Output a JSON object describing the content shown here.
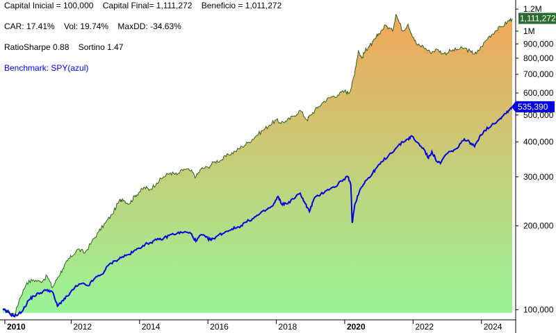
{
  "stats": {
    "line1": "Capital Inicial = 100,000    Capital Final= 1,111,272    Beneficio = 1,011,272",
    "line2": "CAR: 17.41%    Vol: 19.74%    MaxDD: -34.63%",
    "line3": "RatioSharpe 0.88    Sortino 1.47",
    "benchmark": "Benchmark: SPY(azul)"
  },
  "colors": {
    "equity_line": "#2e5e1e",
    "fill_top": "#f2a65a",
    "fill_bottom": "#98f598",
    "benchmark_line": "#0000e0",
    "equity_tag_bg": "#2e6b2e",
    "benchmark_tag_bg": "#0000e0",
    "axis": "#000000"
  },
  "chart_data": {
    "type": "area",
    "scale": "log",
    "ylim": [
      92000,
      1250000
    ],
    "xlim": [
      2010.0,
      2024.9
    ],
    "ytick_labels": [
      "100,000",
      "200,000",
      "300,000",
      "400,000",
      "500,000",
      "600,000",
      "700,000",
      "800,000",
      "900,000",
      "1M",
      "1.2M"
    ],
    "ytick_values": [
      100000,
      200000,
      300000,
      400000,
      500000,
      600000,
      700000,
      800000,
      900000,
      1000000,
      1200000
    ],
    "xtick_labels": [
      "2010",
      "2012",
      "2014",
      "2016",
      "2018",
      "2020",
      "2022",
      "2024"
    ],
    "xtick_values": [
      2010,
      2012,
      2014,
      2016,
      2018,
      2020,
      2022,
      2024
    ],
    "xtick_bold": [
      "2010",
      "2020"
    ],
    "last_values": {
      "strategy": "1,111,272",
      "benchmark": "535,390"
    },
    "series": [
      {
        "x": [
          2010.0,
          2010.2,
          2010.35,
          2010.5,
          2010.7,
          2010.9,
          2011.1,
          2011.3,
          2011.45,
          2011.6,
          2011.75,
          2011.9,
          2012.0,
          2012.2,
          2012.4,
          2012.6,
          2012.8,
          2013.0,
          2013.2,
          2013.4,
          2013.5,
          2013.7,
          2013.85,
          2014.0,
          2014.15,
          2014.3,
          2014.5,
          2014.7,
          2014.9,
          2015.1,
          2015.3,
          2015.5,
          2015.65,
          2015.8,
          2016.0,
          2016.2,
          2016.4,
          2016.6,
          2016.8,
          2017.0,
          2017.2,
          2017.4,
          2017.6,
          2017.8,
          2018.0,
          2018.1,
          2018.3,
          2018.5,
          2018.7,
          2018.9,
          2019.0,
          2019.2,
          2019.4,
          2019.6,
          2019.8,
          2020.0,
          2020.12,
          2020.2,
          2020.3,
          2020.4,
          2020.5,
          2020.6,
          2020.7,
          2020.8,
          2020.9,
          2021.0,
          2021.2,
          2021.4,
          2021.5,
          2021.7,
          2021.85,
          2022.0,
          2022.1,
          2022.3,
          2022.5,
          2022.7,
          2022.9,
          2023.1,
          2023.3,
          2023.5,
          2023.7,
          2023.85,
          2024.0,
          2024.2,
          2024.4,
          2024.6,
          2024.8,
          2024.9
        ],
        "values": [
          100000,
          98000,
          96000,
          110000,
          125000,
          128000,
          126000,
          132000,
          120000,
          130000,
          140000,
          150000,
          155000,
          165000,
          160000,
          175000,
          190000,
          205000,
          220000,
          245000,
          250000,
          240000,
          255000,
          265000,
          275000,
          270000,
          285000,
          300000,
          310000,
          305000,
          320000,
          315000,
          300000,
          320000,
          325000,
          340000,
          345000,
          360000,
          370000,
          385000,
          400000,
          420000,
          440000,
          460000,
          480000,
          470000,
          475000,
          495000,
          520000,
          480000,
          500000,
          530000,
          560000,
          580000,
          590000,
          610000,
          600000,
          630000,
          720000,
          850000,
          800000,
          850000,
          880000,
          900000,
          940000,
          980000,
          1050000,
          1000000,
          1150000,
          1000000,
          1060000,
          950000,
          900000,
          880000,
          840000,
          860000,
          830000,
          850000,
          860000,
          870000,
          840000,
          830000,
          880000,
          950000,
          1000000,
          1040000,
          1090000,
          1111272
        ]
      },
      {
        "x": [
          2010.0,
          2010.15,
          2010.3,
          2010.45,
          2010.6,
          2010.75,
          2010.9,
          2011.1,
          2011.3,
          2011.45,
          2011.6,
          2011.75,
          2011.9,
          2012.1,
          2012.3,
          2012.5,
          2012.7,
          2012.9,
          2013.1,
          2013.3,
          2013.5,
          2013.7,
          2013.9,
          2014.1,
          2014.3,
          2014.5,
          2014.7,
          2014.9,
          2015.1,
          2015.3,
          2015.5,
          2015.65,
          2015.8,
          2016.0,
          2016.1,
          2016.3,
          2016.5,
          2016.7,
          2016.9,
          2017.1,
          2017.3,
          2017.5,
          2017.7,
          2017.9,
          2018.05,
          2018.15,
          2018.3,
          2018.5,
          2018.7,
          2018.85,
          2018.97,
          2019.1,
          2019.3,
          2019.5,
          2019.7,
          2019.9,
          2020.1,
          2020.18,
          2020.22,
          2020.3,
          2020.45,
          2020.6,
          2020.75,
          2020.9,
          2021.1,
          2021.3,
          2021.5,
          2021.7,
          2021.85,
          2021.97,
          2022.1,
          2022.3,
          2022.45,
          2022.55,
          2022.7,
          2022.8,
          2022.95,
          2023.1,
          2023.3,
          2023.5,
          2023.65,
          2023.8,
          2023.95,
          2024.1,
          2024.3,
          2024.5,
          2024.65,
          2024.8,
          2024.9
        ],
        "values": [
          100000,
          98000,
          95000,
          96000,
          100000,
          108000,
          112000,
          115000,
          118000,
          116000,
          103000,
          108000,
          112000,
          120000,
          124000,
          122000,
          130000,
          134000,
          145000,
          150000,
          155000,
          158000,
          164000,
          170000,
          174000,
          178000,
          180000,
          186000,
          188000,
          190000,
          188000,
          176000,
          186000,
          180000,
          178000,
          185000,
          190000,
          195000,
          198000,
          206000,
          212000,
          220000,
          228000,
          236000,
          255000,
          240000,
          240000,
          250000,
          262000,
          240000,
          225000,
          250000,
          260000,
          270000,
          275000,
          290000,
          300000,
          280000,
          205000,
          240000,
          270000,
          290000,
          300000,
          320000,
          340000,
          360000,
          380000,
          400000,
          410000,
          420000,
          400000,
          380000,
          350000,
          370000,
          340000,
          335000,
          360000,
          370000,
          380000,
          410000,
          400000,
          385000,
          420000,
          440000,
          460000,
          480000,
          500000,
          520000,
          535390
        ]
      }
    ]
  }
}
